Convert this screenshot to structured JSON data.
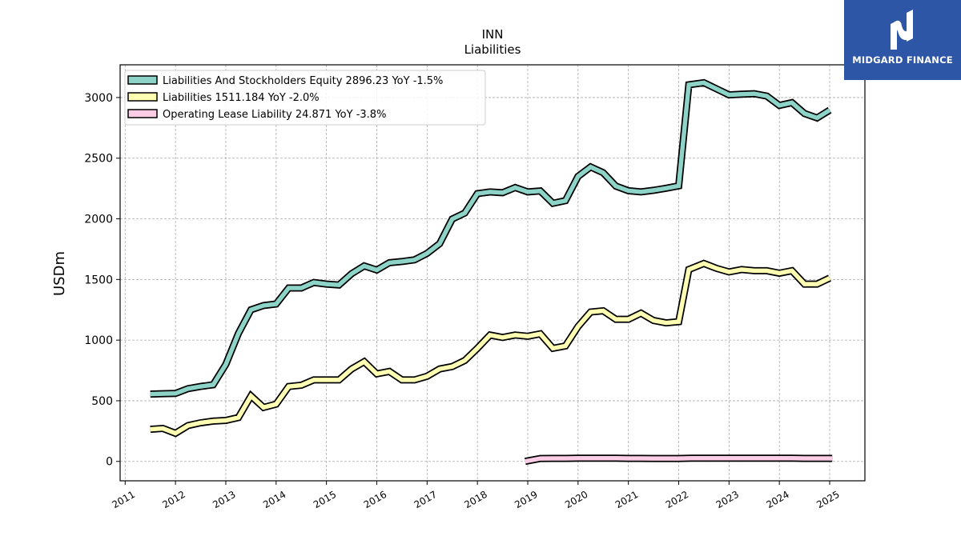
{
  "brand": {
    "name": "MIDGARD FINANCE",
    "color": "#2d56a6"
  },
  "chart_data": {
    "type": "line",
    "title": "INN",
    "subtitle": "Liabilities",
    "xlabel": "",
    "ylabel": "USDm",
    "xlim": [
      2010.9,
      2025.7
    ],
    "ylim": [
      -160,
      3270
    ],
    "x_ticks": [
      2011,
      2012,
      2013,
      2014,
      2015,
      2016,
      2017,
      2018,
      2019,
      2020,
      2021,
      2022,
      2023,
      2024,
      2025
    ],
    "y_ticks": [
      0,
      500,
      1000,
      1500,
      2000,
      2500,
      3000
    ],
    "grid": true,
    "legend_position": "top-left",
    "series": [
      {
        "name": "Liabilities And Stockholders Equity",
        "legend_label": "Liabilities And Stockholders Equity  2896.23 YoY -1.5%",
        "color": "#8dd3c7",
        "x": [
          2011.5,
          2011.75,
          2012.0,
          2012.25,
          2012.5,
          2012.75,
          2013.0,
          2013.25,
          2013.5,
          2013.75,
          2014.0,
          2014.25,
          2014.5,
          2014.75,
          2015.0,
          2015.25,
          2015.5,
          2015.75,
          2016.0,
          2016.25,
          2016.5,
          2016.75,
          2017.0,
          2017.25,
          2017.5,
          2017.75,
          2018.0,
          2018.25,
          2018.5,
          2018.75,
          2019.0,
          2019.25,
          2019.5,
          2019.75,
          2020.0,
          2020.25,
          2020.5,
          2020.75,
          2021.0,
          2021.25,
          2021.5,
          2021.75,
          2022.0,
          2022.2,
          2022.5,
          2022.75,
          2023.0,
          2023.25,
          2023.5,
          2023.75,
          2024.0,
          2024.25,
          2024.5,
          2024.75,
          2025.0
        ],
        "values": [
          555,
          558,
          560,
          600,
          618,
          632,
          800,
          1055,
          1250,
          1285,
          1298,
          1430,
          1430,
          1475,
          1462,
          1455,
          1548,
          1612,
          1578,
          1638,
          1648,
          1662,
          1715,
          1795,
          1998,
          2048,
          2208,
          2222,
          2215,
          2258,
          2222,
          2230,
          2128,
          2150,
          2350,
          2428,
          2380,
          2270,
          2232,
          2222,
          2235,
          2252,
          2272,
          3105,
          3122,
          3072,
          3022,
          3028,
          3032,
          3012,
          2935,
          2958,
          2868,
          2832,
          2896.23
        ]
      },
      {
        "name": "Liabilities",
        "legend_label": "Liabilities  1511.184 YoY -2.0%",
        "color": "#ffffb3",
        "x": [
          2011.5,
          2011.75,
          2012.0,
          2012.25,
          2012.5,
          2012.75,
          2013.0,
          2013.25,
          2013.5,
          2013.75,
          2014.0,
          2014.25,
          2014.5,
          2014.75,
          2015.0,
          2015.25,
          2015.5,
          2015.75,
          2016.0,
          2016.25,
          2016.5,
          2016.75,
          2017.0,
          2017.25,
          2017.5,
          2017.75,
          2018.0,
          2018.25,
          2018.5,
          2018.75,
          2019.0,
          2019.25,
          2019.5,
          2019.75,
          2020.0,
          2020.25,
          2020.5,
          2020.75,
          2021.0,
          2021.25,
          2021.5,
          2021.75,
          2022.0,
          2022.2,
          2022.5,
          2022.75,
          2023.0,
          2023.25,
          2023.5,
          2023.75,
          2024.0,
          2024.25,
          2024.5,
          2024.75,
          2025.0
        ],
        "values": [
          265,
          272,
          232,
          295,
          318,
          332,
          338,
          362,
          540,
          445,
          472,
          618,
          628,
          672,
          672,
          672,
          762,
          822,
          722,
          742,
          672,
          672,
          702,
          762,
          782,
          832,
          932,
          1042,
          1022,
          1042,
          1032,
          1052,
          932,
          952,
          1112,
          1232,
          1242,
          1172,
          1172,
          1222,
          1162,
          1142,
          1152,
          1582,
          1632,
          1592,
          1562,
          1582,
          1572,
          1572,
          1552,
          1572,
          1462,
          1462,
          1511.184
        ]
      },
      {
        "name": "Operating Lease Liability",
        "legend_label": "Operating Lease Liability  24.871 YoY -3.8%",
        "color": "#fccde5",
        "x": [
          2018.95,
          2019.25,
          2019.5,
          2019.75,
          2020.0,
          2020.25,
          2020.5,
          2020.75,
          2021.0,
          2021.25,
          2021.5,
          2021.75,
          2022.0,
          2022.25,
          2022.5,
          2022.75,
          2023.0,
          2023.25,
          2023.5,
          2023.75,
          2024.0,
          2024.25,
          2024.5,
          2024.75,
          2025.05
        ],
        "values": [
          0,
          24,
          25,
          25,
          26,
          26,
          26,
          26,
          25,
          25,
          24,
          24,
          24,
          26,
          26,
          27,
          27,
          27,
          27,
          27,
          26,
          26,
          25,
          25,
          24.871
        ]
      }
    ]
  }
}
